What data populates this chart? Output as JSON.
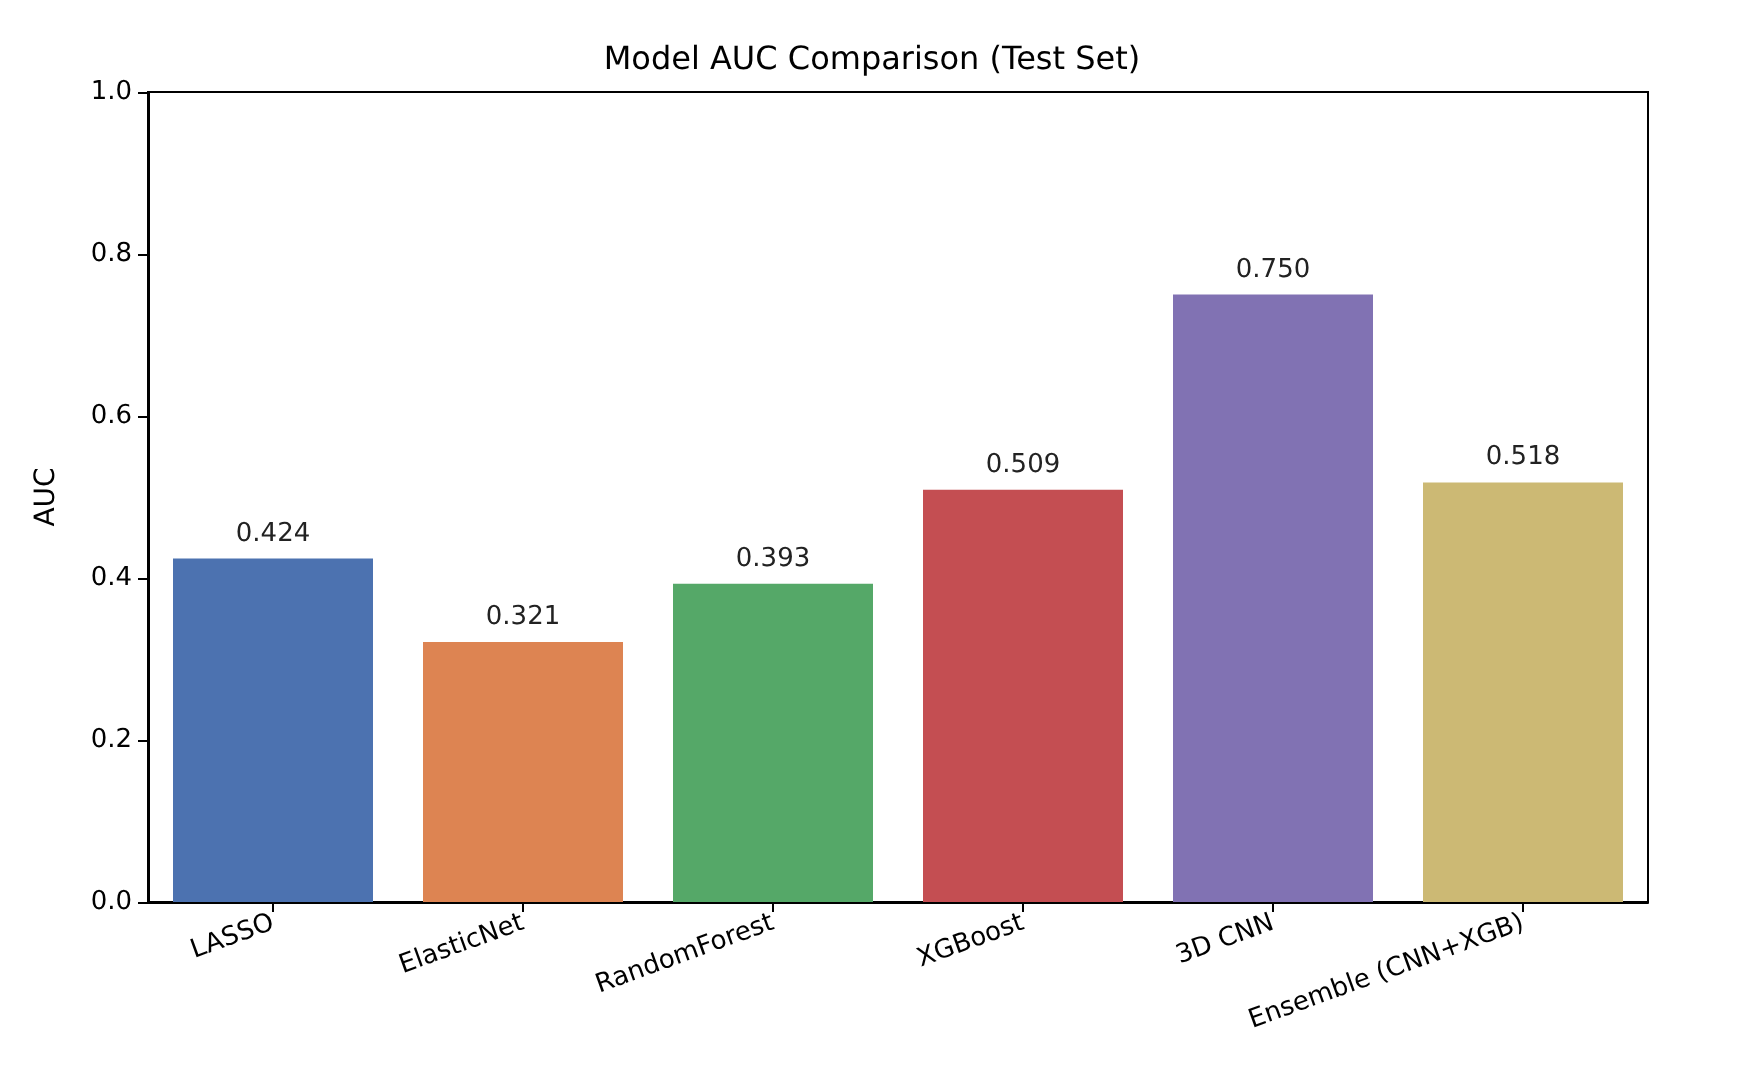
{
  "chart_data": {
    "type": "bar",
    "title": "Model AUC Comparison (Test Set)",
    "ylabel": "AUC",
    "categories": [
      "LASSO",
      "ElasticNet",
      "RandomForest",
      "XGBoost",
      "3D CNN",
      "Ensemble (CNN+XGB)"
    ],
    "values": [
      0.424,
      0.321,
      0.393,
      0.509,
      0.75,
      0.518
    ],
    "colors": [
      "#4c72b0",
      "#dd8452",
      "#55a868",
      "#c44e52",
      "#8172b3",
      "#ccb974"
    ],
    "value_labels": [
      "0.424",
      "0.321",
      "0.393",
      "0.509",
      "0.750",
      "0.518"
    ],
    "ylim": [
      0,
      1
    ],
    "yticks": [
      {
        "value": 0,
        "label": "0.0"
      },
      {
        "value": 0.2,
        "label": "0.2"
      },
      {
        "value": 0.4,
        "label": "0.4"
      },
      {
        "value": 0.6,
        "label": "0.6"
      },
      {
        "value": 0.8,
        "label": "0.8"
      },
      {
        "value": 1,
        "label": "1.0"
      }
    ],
    "grid": false
  }
}
